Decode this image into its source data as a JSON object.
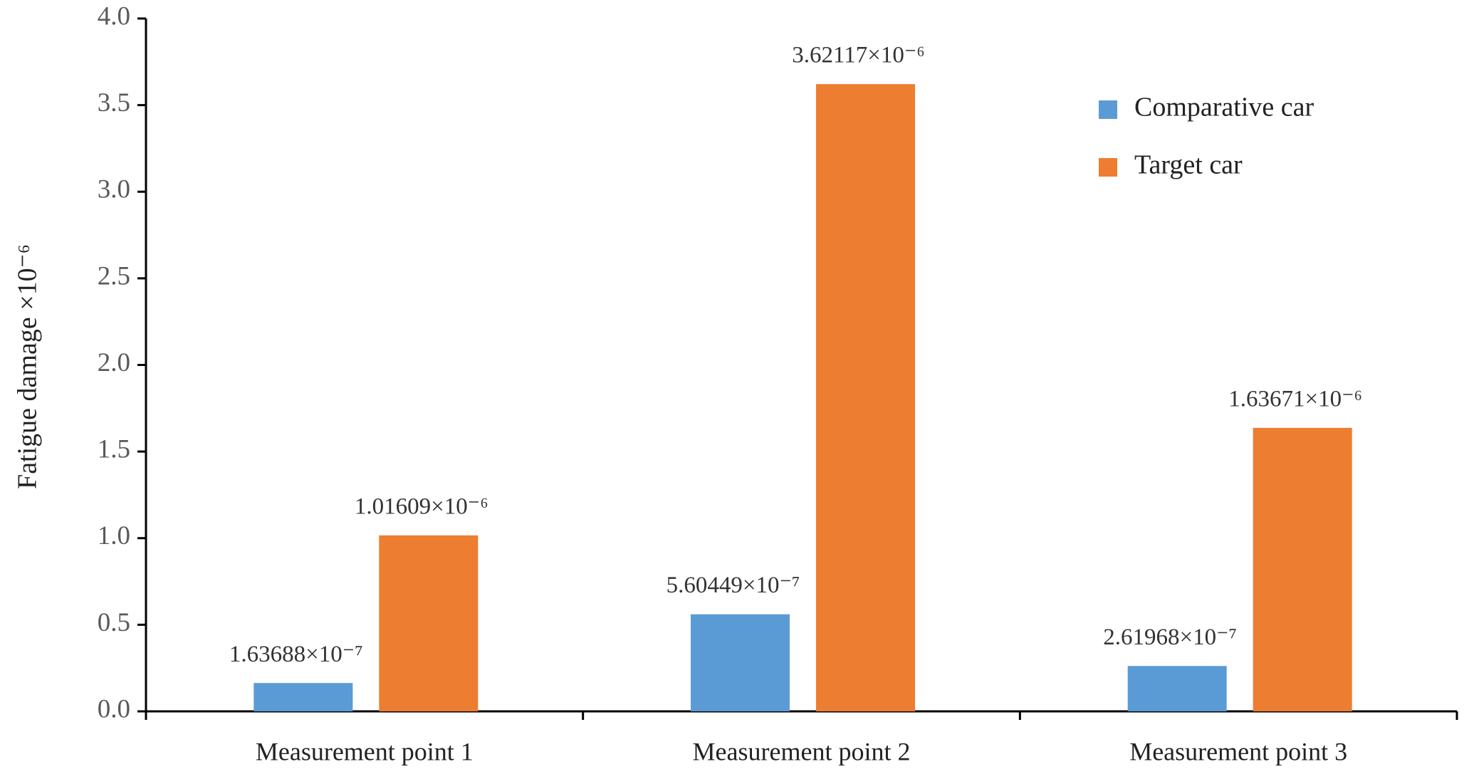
{
  "chart_data": {
    "type": "bar",
    "y_label": "Fatigue damage  ×10⁻⁶",
    "categories": [
      "Measurement point  1",
      "Measurement point  2",
      "Measurement point  3"
    ],
    "series": [
      {
        "name": "Comparative car",
        "color": "#5b9bd5",
        "values": [
          0.163688,
          0.560449,
          0.261968
        ],
        "value_labels": [
          "1.63688×10⁻⁷",
          "5.60449×10⁻⁷",
          "2.61968×10⁻⁷"
        ]
      },
      {
        "name": "Target car",
        "color": "#ed7d31",
        "values": [
          1.01609,
          3.62117,
          1.63671
        ],
        "value_labels": [
          "1.01609×10⁻⁶",
          "3.62117×10⁻⁶",
          "1.63671×10⁻⁶"
        ]
      }
    ],
    "ylim": [
      0,
      4
    ],
    "yticks": [
      {
        "value": 0,
        "label": "0.0"
      },
      0.5,
      {
        "value": 1,
        "label": "1.0"
      },
      1.5,
      {
        "value": 2,
        "label": "2.0"
      },
      2.5,
      {
        "value": 3,
        "label": "3.0"
      },
      3.5,
      {
        "value": 4,
        "label": "4.0"
      }
    ],
    "grid": false,
    "legend": "top-right"
  }
}
